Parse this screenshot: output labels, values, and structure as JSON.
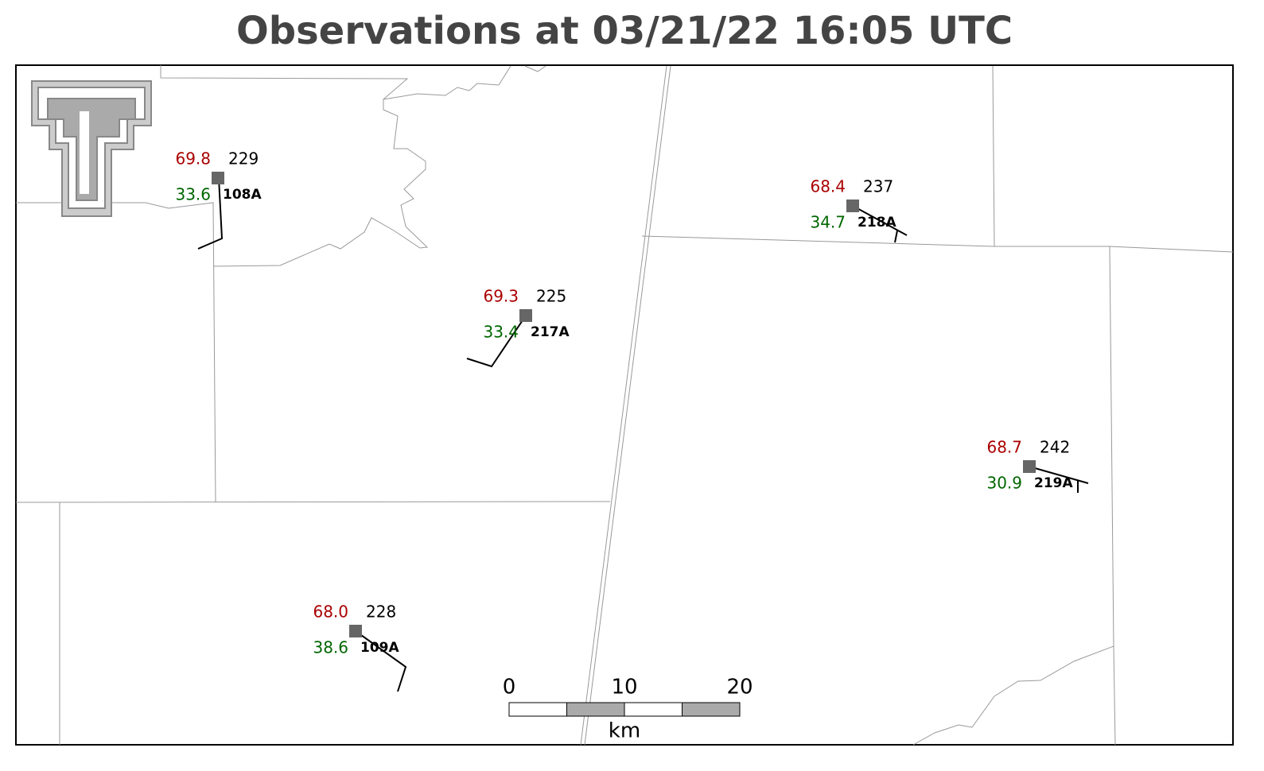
{
  "title": "Observations at 03/21/22 16:05 UTC",
  "stations": [
    {
      "id": "108A",
      "temperature": "69.8",
      "dewpoint": "33.6",
      "pressure": "229"
    },
    {
      "id": "217A",
      "temperature": "69.3",
      "dewpoint": "33.4",
      "pressure": "225"
    },
    {
      "id": "218A",
      "temperature": "68.4",
      "dewpoint": "34.7",
      "pressure": "237"
    },
    {
      "id": "219A",
      "temperature": "68.7",
      "dewpoint": "30.9",
      "pressure": "242"
    },
    {
      "id": "109A",
      "temperature": "68.0",
      "dewpoint": "38.6",
      "pressure": "228"
    }
  ],
  "scale_bar": {
    "ticks": [
      "0",
      "10",
      "20"
    ],
    "unit": "km"
  }
}
